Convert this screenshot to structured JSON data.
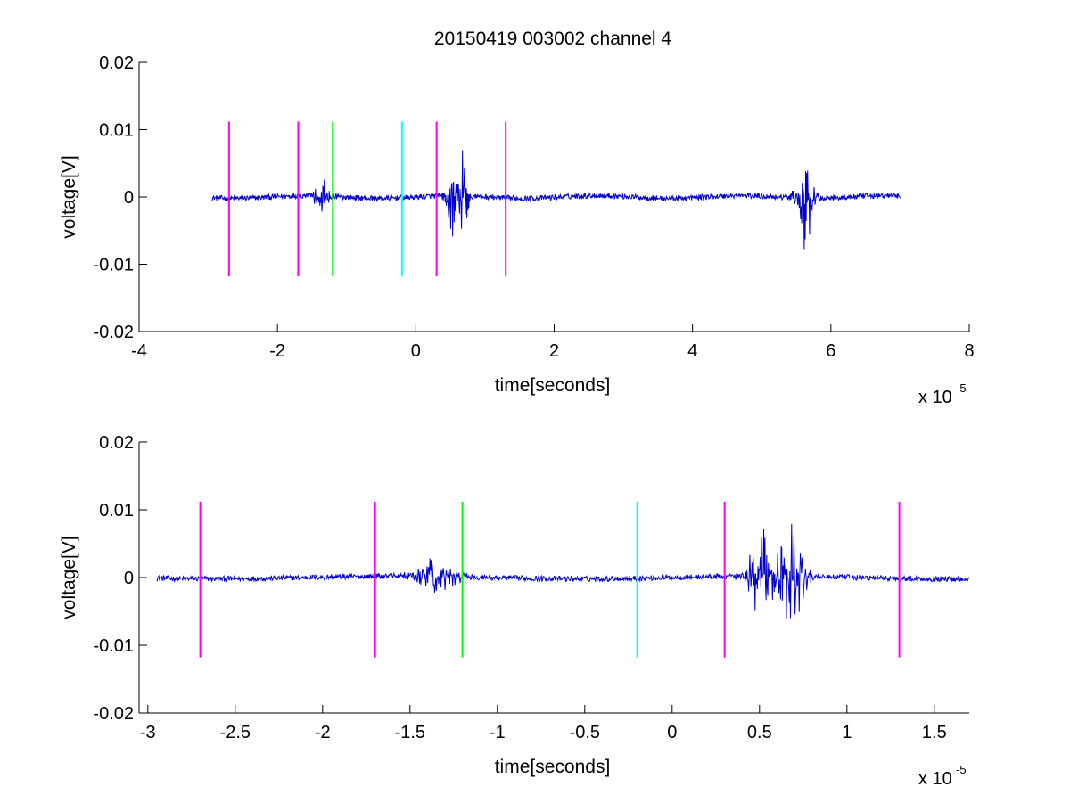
{
  "figure": {
    "title": "20150419 003002 channel 4"
  },
  "chart_data": [
    {
      "type": "line",
      "title": "20150419 003002 channel 4",
      "xlabel": "time[seconds]",
      "ylabel": "voltage[V]",
      "x_exponent_base": "x 10",
      "x_exponent": "-5",
      "xlim": [
        -4,
        8
      ],
      "ylim": [
        -0.02,
        0.02
      ],
      "x_ticks": [
        -4,
        -2,
        0,
        2,
        4,
        6,
        8
      ],
      "x_tick_labels": [
        "-4",
        "-2",
        "0",
        "2",
        "4",
        "6",
        "8"
      ],
      "y_ticks": [
        -0.02,
        -0.01,
        0,
        0.01,
        0.02
      ],
      "y_tick_labels": [
        "-0.02",
        "-0.01",
        "0",
        "0.01",
        "0.02"
      ],
      "grid": false,
      "box": "left-bottom",
      "signal": {
        "color": "#0000cc",
        "x_range": [
          -2.95,
          7.0
        ],
        "baseline_noise": 0.0004,
        "bursts": [
          {
            "center": -1.35,
            "width": 0.12,
            "amplitude": 0.003
          },
          {
            "center": 0.52,
            "width": 0.08,
            "amplitude": 0.008
          },
          {
            "center": 0.68,
            "width": 0.08,
            "amplitude": 0.009
          },
          {
            "center": 5.62,
            "width": 0.12,
            "amplitude": 0.009
          }
        ]
      },
      "markers": [
        {
          "x": -2.7,
          "color": "#ff00ff"
        },
        {
          "x": -1.7,
          "color": "#ff00ff"
        },
        {
          "x": -1.2,
          "color": "#00ff00"
        },
        {
          "x": -0.2,
          "color": "#00ffff"
        },
        {
          "x": 0.3,
          "color": "#ff00ff"
        },
        {
          "x": 1.3,
          "color": "#ff00ff"
        }
      ],
      "marker_y_range": [
        -0.0118,
        0.0112
      ]
    },
    {
      "type": "line",
      "xlabel": "time[seconds]",
      "ylabel": "voltage[V]",
      "x_exponent_base": "x 10",
      "x_exponent": "-5",
      "xlim": [
        -3.05,
        1.7
      ],
      "ylim": [
        -0.02,
        0.02
      ],
      "x_ticks": [
        -3,
        -2.5,
        -2,
        -1.5,
        -1,
        -0.5,
        0,
        0.5,
        1,
        1.5
      ],
      "x_tick_labels": [
        "-3",
        "-2.5",
        "-2",
        "-1.5",
        "-1",
        "-0.5",
        "0",
        "0.5",
        "1",
        "1.5"
      ],
      "y_ticks": [
        -0.02,
        -0.01,
        0,
        0.01,
        0.02
      ],
      "y_tick_labels": [
        "-0.02",
        "-0.01",
        "0",
        "0.01",
        "0.02"
      ],
      "grid": false,
      "box": "left-bottom",
      "signal": {
        "color": "#0000cc",
        "x_range": [
          -2.95,
          1.7
        ],
        "baseline_noise": 0.0004,
        "bursts": [
          {
            "center": -1.35,
            "width": 0.12,
            "amplitude": 0.003
          },
          {
            "center": 0.52,
            "width": 0.08,
            "amplitude": 0.008
          },
          {
            "center": 0.68,
            "width": 0.08,
            "amplitude": 0.009
          }
        ]
      },
      "markers": [
        {
          "x": -2.7,
          "color": "#ff00ff"
        },
        {
          "x": -1.7,
          "color": "#ff00ff"
        },
        {
          "x": -1.2,
          "color": "#00ff00"
        },
        {
          "x": -0.2,
          "color": "#00ffff"
        },
        {
          "x": 0.3,
          "color": "#ff00ff"
        },
        {
          "x": 1.3,
          "color": "#ff00ff"
        }
      ],
      "marker_y_range": [
        -0.0118,
        0.0112
      ]
    }
  ]
}
